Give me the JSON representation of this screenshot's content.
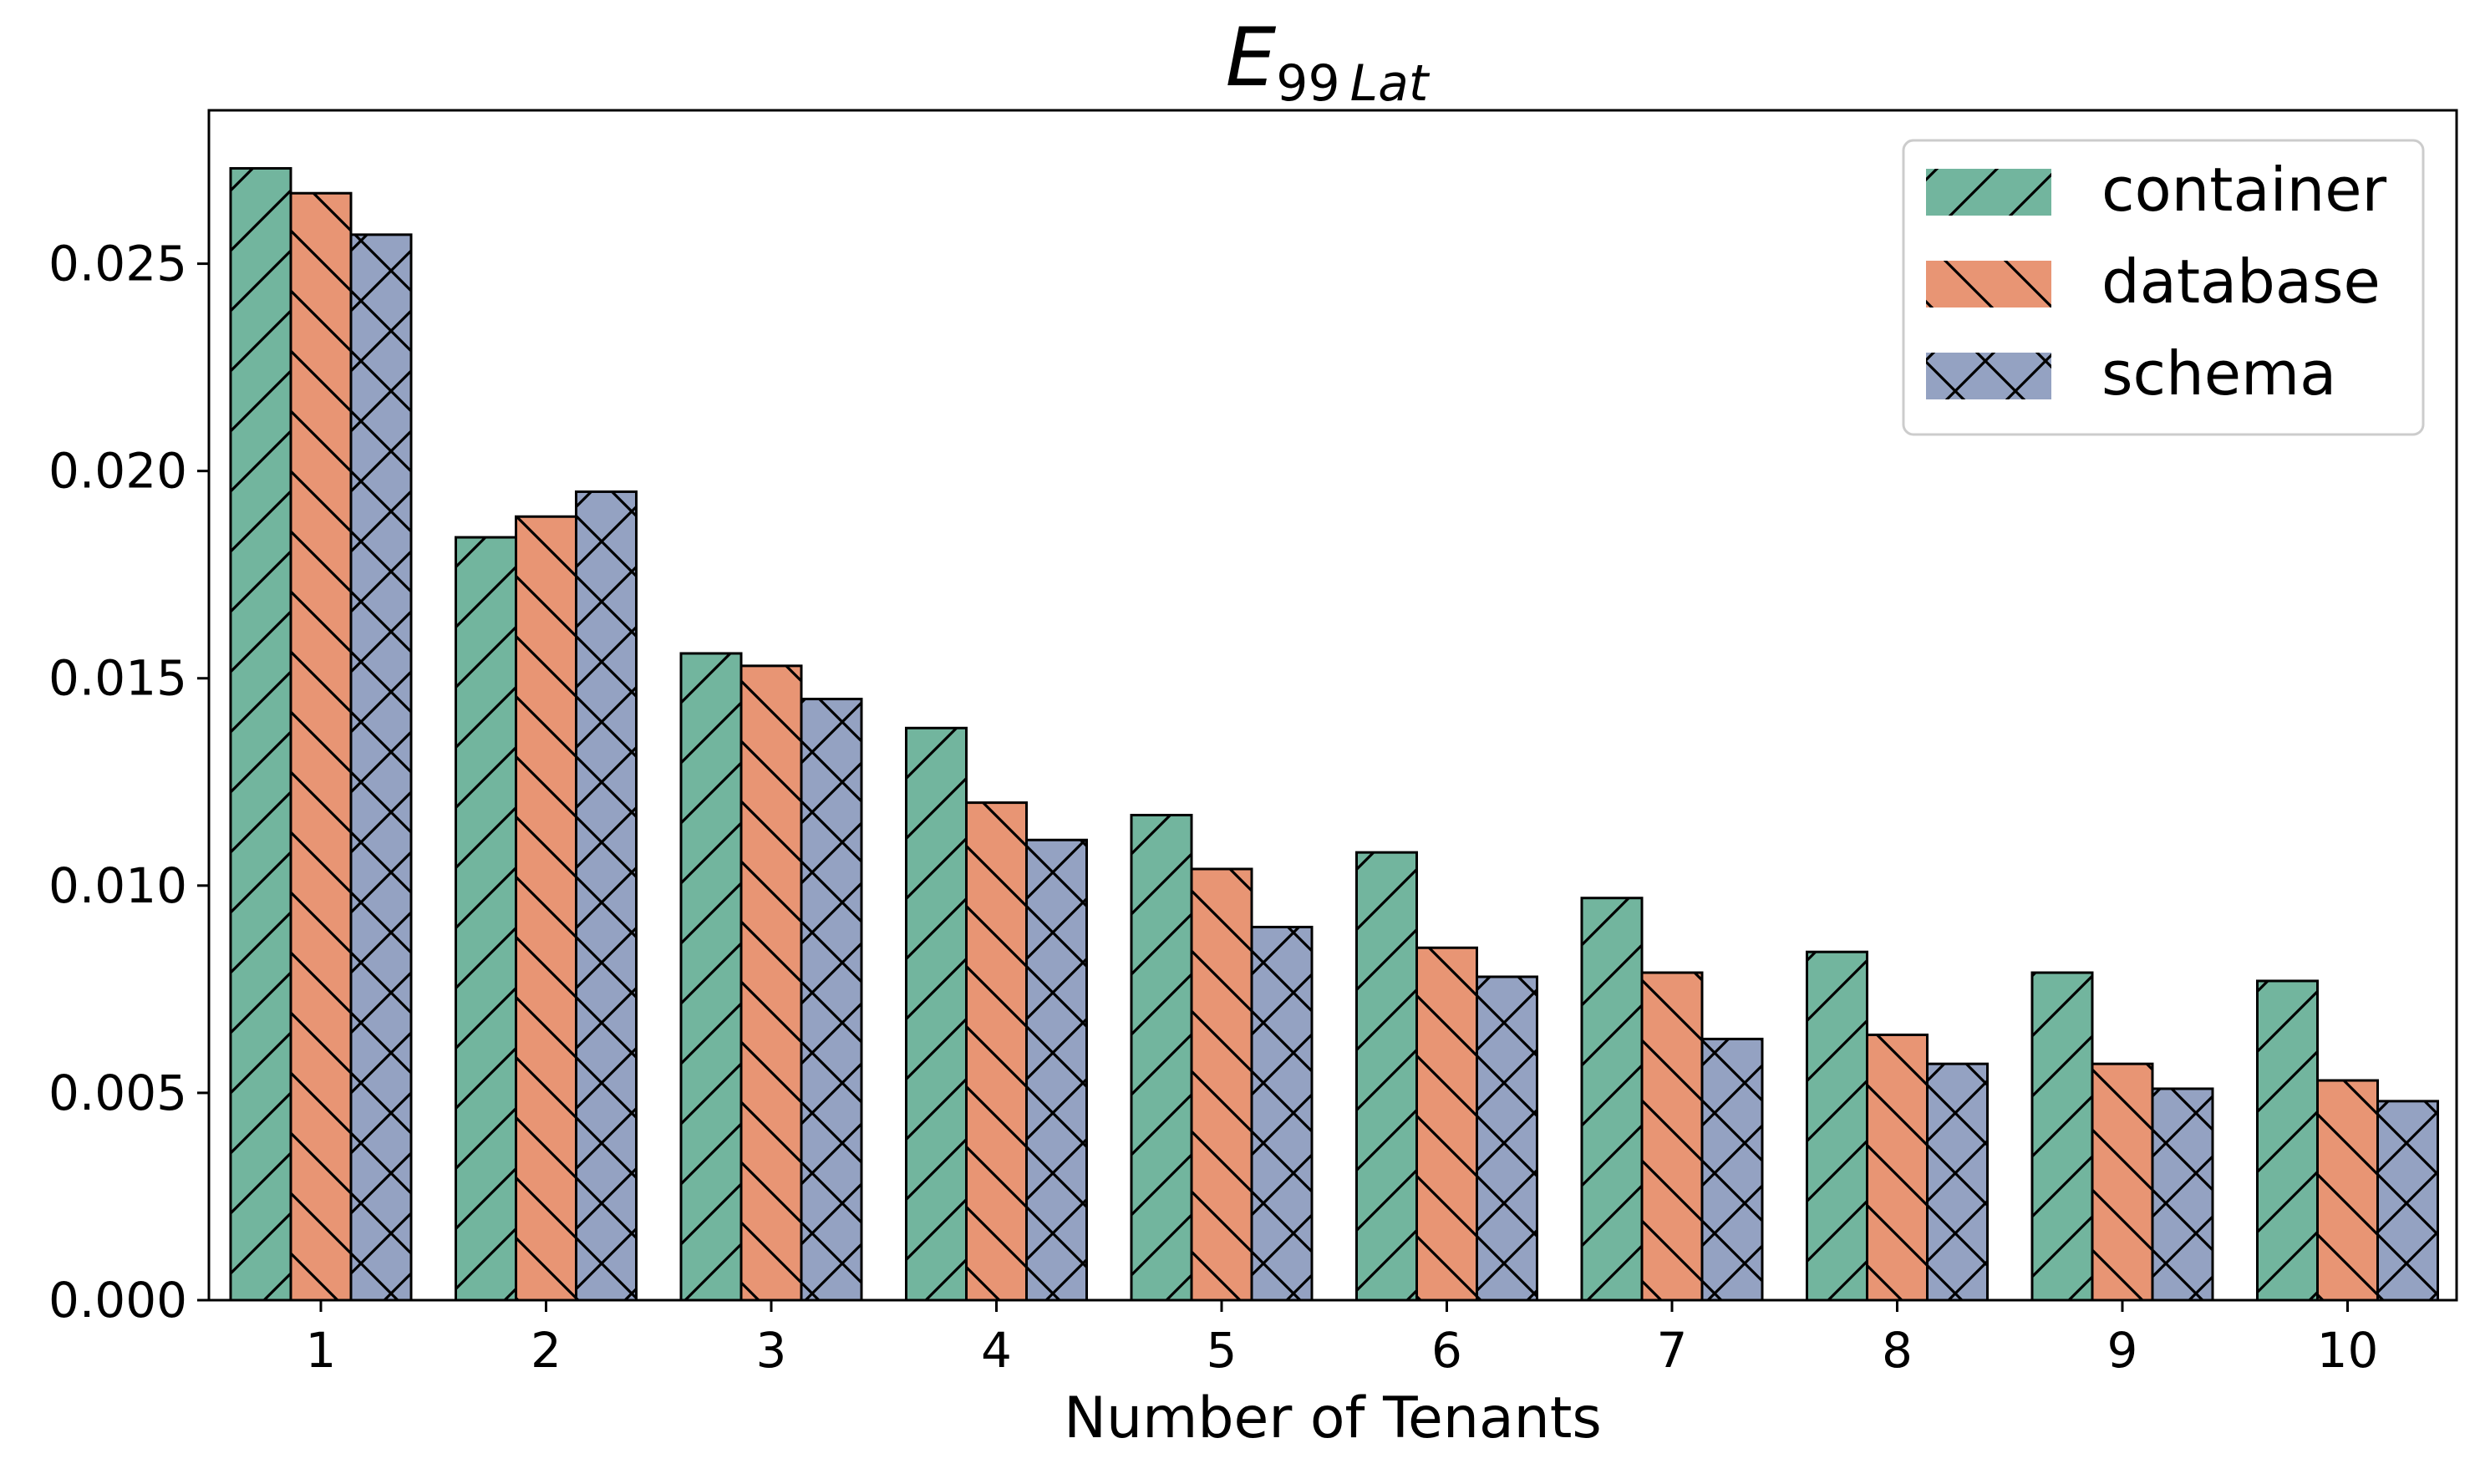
{
  "chart_data": {
    "type": "bar",
    "title_main": "E",
    "title_sub_num": "99",
    "title_sub_text": "Lat",
    "xlabel": "Number of Tenants",
    "ylabel": "",
    "categories": [
      "1",
      "2",
      "3",
      "4",
      "5",
      "6",
      "7",
      "8",
      "9",
      "10"
    ],
    "yticks": [
      "0.000",
      "0.005",
      "0.010",
      "0.015",
      "0.020",
      "0.025"
    ],
    "ytick_values": [
      0,
      0.005,
      0.01,
      0.015,
      0.02,
      0.025
    ],
    "ylim": [
      0,
      0.0287
    ],
    "grid": false,
    "legend_position": "top-right",
    "series": [
      {
        "name": "container",
        "color": "#72b59e",
        "hatch": "diagonal-up",
        "values": [
          0.0273,
          0.0184,
          0.0156,
          0.0138,
          0.0117,
          0.0108,
          0.0097,
          0.0084,
          0.0079,
          0.0077
        ]
      },
      {
        "name": "database",
        "color": "#e89574",
        "hatch": "diagonal-down",
        "values": [
          0.0267,
          0.0189,
          0.0153,
          0.012,
          0.0104,
          0.0085,
          0.0079,
          0.0064,
          0.0057,
          0.0053
        ]
      },
      {
        "name": "schema",
        "color": "#94a2c2",
        "hatch": "cross",
        "values": [
          0.0257,
          0.0195,
          0.0145,
          0.0111,
          0.009,
          0.0078,
          0.0063,
          0.0057,
          0.0051,
          0.0048
        ]
      }
    ]
  }
}
